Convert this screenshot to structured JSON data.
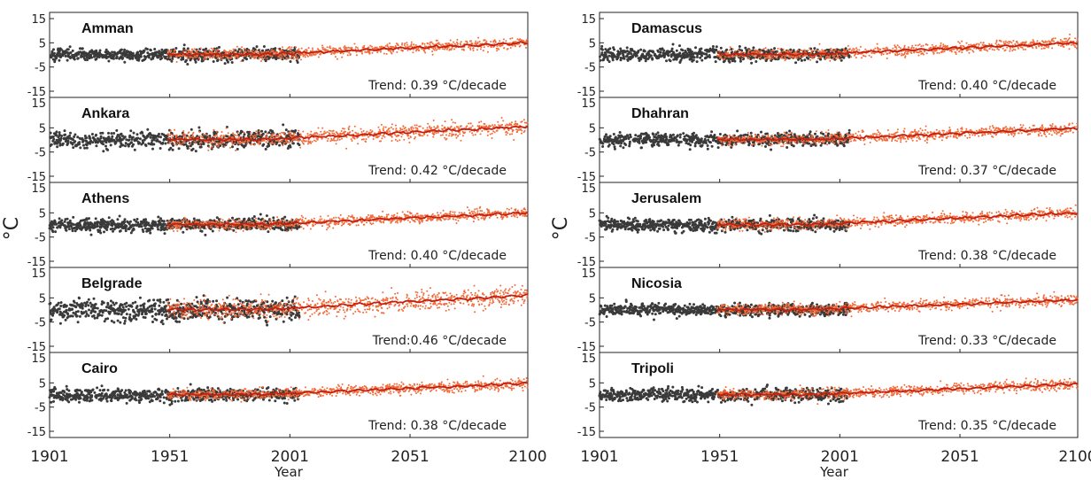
{
  "chart_data": {
    "type": "scatter",
    "xlabel": "Year",
    "ylabel": "°C",
    "x_ticks": [
      "1901",
      "1951",
      "2001",
      "2051",
      "2100"
    ],
    "xlim": [
      1901,
      2100
    ],
    "ylim": [
      -15,
      15
    ],
    "y_ticks": [
      15,
      5,
      -5,
      -15
    ],
    "observed_range": [
      1901,
      2005
    ],
    "model_range": [
      1950,
      2100
    ],
    "colors": {
      "observed": "#3a3a3a",
      "model": "#f26b3a",
      "trend": "#c21f0f"
    },
    "panels": [
      {
        "column": 0,
        "city": "Amman",
        "trend": "Trend: 0.39 °C/decade",
        "trend_rate": 0.39,
        "end_value": 5.0
      },
      {
        "column": 0,
        "city": "Ankara",
        "trend": "Trend: 0.42 °C/decade",
        "trend_rate": 0.42,
        "end_value": 5.5
      },
      {
        "column": 0,
        "city": "Athens",
        "trend": "Trend: 0.40 °C/decade",
        "trend_rate": 0.4,
        "end_value": 5.0
      },
      {
        "column": 0,
        "city": "Belgrade",
        "trend": "Trend:0.46 °C/decade",
        "trend_rate": 0.46,
        "end_value": 6.0
      },
      {
        "column": 0,
        "city": "Cairo",
        "trend": "Trend: 0.38 °C/decade",
        "trend_rate": 0.38,
        "end_value": 4.8
      },
      {
        "column": 1,
        "city": "Damascus",
        "trend": "Trend: 0.40 °C/decade",
        "trend_rate": 0.4,
        "end_value": 5.0
      },
      {
        "column": 1,
        "city": "Dhahran",
        "trend": "Trend: 0.37 °C/decade",
        "trend_rate": 0.37,
        "end_value": 4.8
      },
      {
        "column": 1,
        "city": "Jerusalem",
        "trend": "Trend: 0.38 °C/decade",
        "trend_rate": 0.38,
        "end_value": 5.0
      },
      {
        "column": 1,
        "city": "Nicosia",
        "trend": "Trend: 0.33 °C/decade",
        "trend_rate": 0.33,
        "end_value": 4.2
      },
      {
        "column": 1,
        "city": "Tripoli",
        "trend": "Trend: 0.35 °C/decade",
        "trend_rate": 0.35,
        "end_value": 4.5
      }
    ]
  }
}
